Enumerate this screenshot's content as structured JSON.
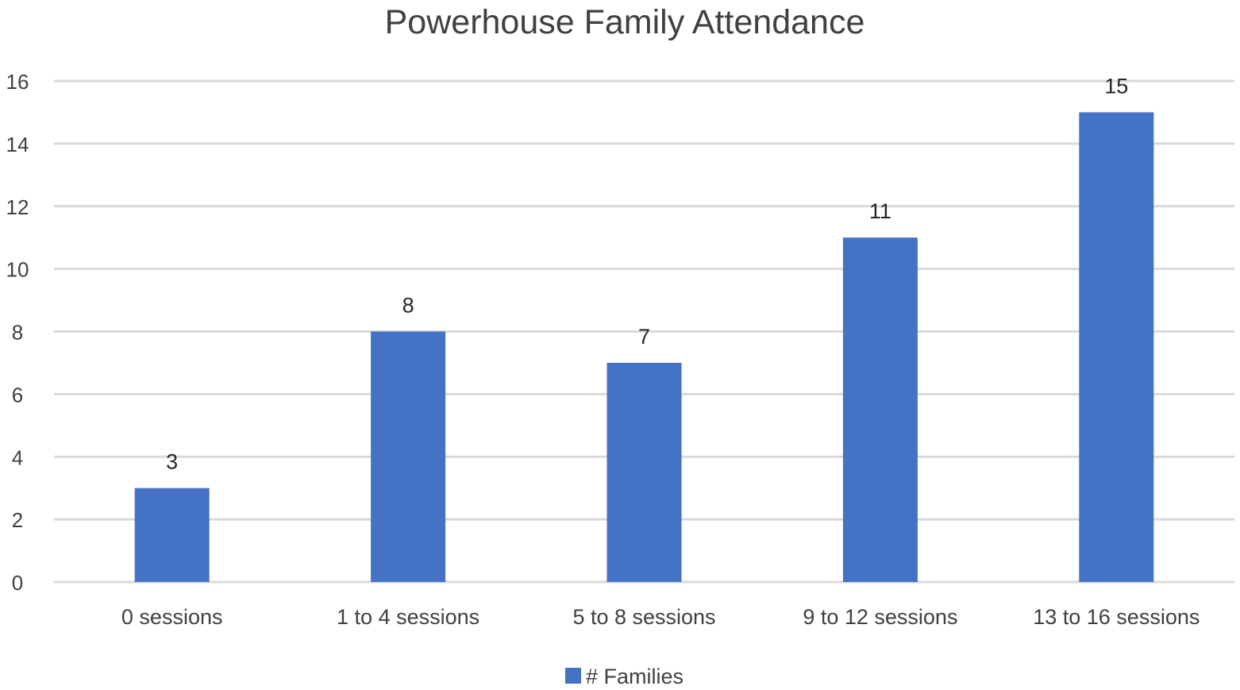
{
  "chart_data": {
    "type": "bar",
    "title": "Powerhouse Family Attendance",
    "categories": [
      "0 sessions",
      "1 to 4 sessions",
      "5 to 8 sessions",
      "9 to 12 sessions",
      "13 to 16 sessions"
    ],
    "series": [
      {
        "name": "# Families",
        "values": [
          3,
          8,
          7,
          11,
          15
        ],
        "color": "#4472c4"
      }
    ],
    "data_labels": [
      "3",
      "8",
      "7",
      "11",
      "15"
    ],
    "y_ticks": [
      "0",
      "2",
      "4",
      "6",
      "8",
      "10",
      "12",
      "14",
      "16"
    ],
    "ylim": [
      0,
      16
    ],
    "grid": true,
    "legend": "bottom",
    "xlabel": "",
    "ylabel": ""
  }
}
